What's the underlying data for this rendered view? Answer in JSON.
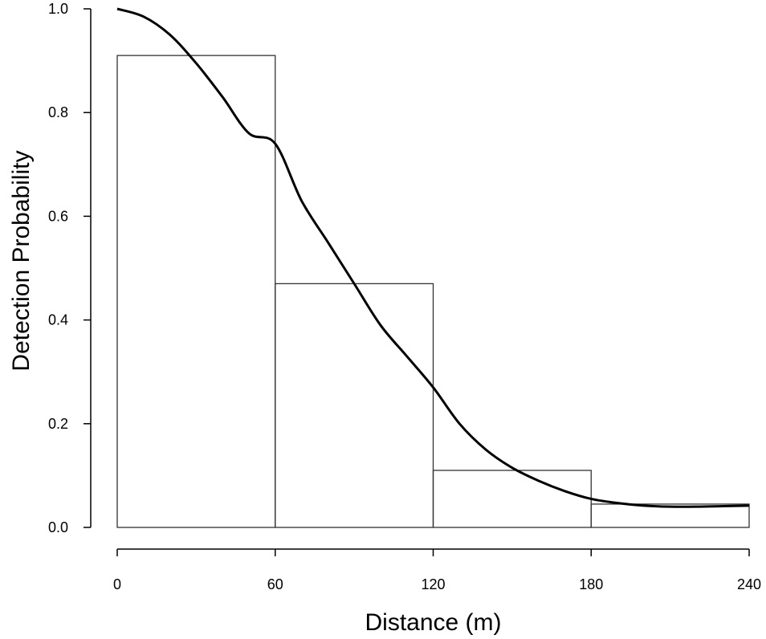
{
  "chart_data": {
    "type": "bar",
    "title": "",
    "xlabel": "Distance (m)",
    "ylabel": "Detection Probability",
    "xlim": [
      0,
      240
    ],
    "ylim": [
      0,
      1.0
    ],
    "x_ticks": [
      "0",
      "60",
      "120",
      "180",
      "240"
    ],
    "y_ticks": [
      "0.0",
      "0.2",
      "0.4",
      "0.6",
      "0.8",
      "1.0"
    ],
    "grid": false,
    "histogram": {
      "bin_edges": [
        0,
        60,
        120,
        180,
        240
      ],
      "values": [
        0.91,
        0.47,
        0.11,
        0.045
      ]
    },
    "fitted_curve": {
      "type": "line",
      "x": [
        0,
        10,
        20,
        30,
        40,
        50,
        60,
        70,
        80,
        90,
        100,
        110,
        120,
        130,
        140,
        150,
        160,
        170,
        180,
        190,
        200,
        210,
        220,
        230,
        240
      ],
      "y": [
        1.0,
        0.985,
        0.95,
        0.895,
        0.83,
        0.76,
        0.74,
        0.63,
        0.55,
        0.47,
        0.39,
        0.33,
        0.27,
        0.2,
        0.15,
        0.115,
        0.09,
        0.07,
        0.055,
        0.047,
        0.042,
        0.04,
        0.04,
        0.041,
        0.042
      ]
    }
  }
}
